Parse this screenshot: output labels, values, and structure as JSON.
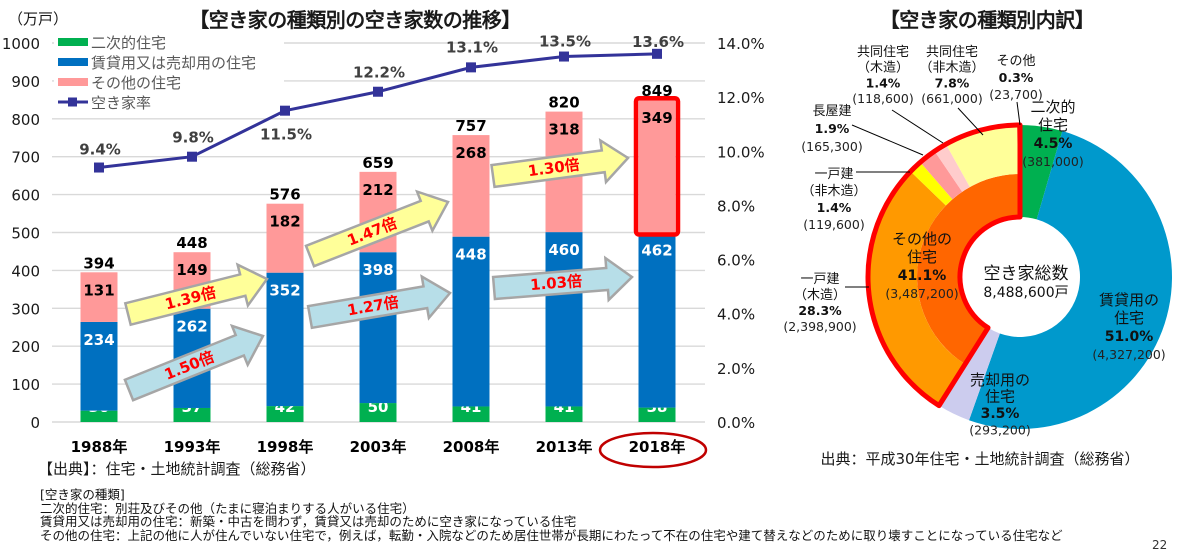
{
  "unit_label": "（万戸）",
  "source_left": "【出典】：住宅・土地統計調査（総務省）",
  "notes": {
    "heading": "[空き家の種類]",
    "lines": [
      "二次的住宅：別荘及びその他（たまに寝泊まりする人がいる住宅）",
      "賃貸用又は売却用の住宅：新築・中古を問わず，賃貸又は売却のために空き家になっている住宅",
      "その他の住宅：上記の他に人が住んでいない住宅で，例えば，転勤・入院などのため居住世帯が長期にわたって不在の住宅や建て替えなどのために取り壊すことになっている住宅など"
    ]
  },
  "pie_source": "出典：平成30年住宅・土地統計調査（総務省）",
  "page_number": "22",
  "chart_data": [
    {
      "type": "bar",
      "subtype": "stacked bar with line on secondary axis",
      "title": "【空き家の種類別の空き家数の推移】",
      "xlabel": "",
      "ylabel": "（万戸）",
      "categories": [
        "1988年",
        "1993年",
        "1998年",
        "2003年",
        "2008年",
        "2013年",
        "2018年"
      ],
      "ylim": [
        0,
        1000
      ],
      "yticks": [
        "0",
        "100",
        "200",
        "300",
        "400",
        "500",
        "600",
        "700",
        "800",
        "900",
        "1000"
      ],
      "y2lim": [
        0,
        14
      ],
      "y2ticks": [
        "0.0%",
        "2.0%",
        "4.0%",
        "6.0%",
        "8.0%",
        "10.0%",
        "12.0%",
        "14.0%"
      ],
      "grid": true,
      "legend_position": "top-left",
      "series": [
        {
          "name": "二次的住宅",
          "type": "bar",
          "color": "#00B050",
          "label_color": "#FFFFFF",
          "values": [
            30,
            37,
            42,
            50,
            41,
            41,
            38
          ]
        },
        {
          "name": "賃貸用又は売却用の住宅",
          "type": "bar",
          "color": "#0070C0",
          "label_color": "#FFFFFF",
          "values": [
            234,
            262,
            352,
            398,
            448,
            460,
            462
          ]
        },
        {
          "name": "その他の住宅",
          "type": "bar",
          "color": "#FF9999",
          "label_color": "#000000",
          "values": [
            131,
            149,
            182,
            212,
            268,
            318,
            349
          ]
        },
        {
          "name": "空き家率",
          "type": "line",
          "axis": "right",
          "color": "#333399",
          "values": [
            9.4,
            9.8,
            11.5,
            12.2,
            13.1,
            13.5,
            13.6
          ],
          "labels": [
            "9.4%",
            "9.8%",
            "11.5%",
            "12.2%",
            "13.1%",
            "13.5%",
            "13.6%"
          ]
        }
      ],
      "totals": [
        394,
        448,
        576,
        659,
        757,
        820,
        849
      ],
      "annotations": [
        {
          "label": "1.39倍",
          "series": "その他の住宅",
          "from": "1988年",
          "to": "1998年",
          "color": "#FFFF99"
        },
        {
          "label": "1.50倍",
          "series": "賃貸用又は売却用の住宅",
          "from": "1988年",
          "to": "1998年",
          "color": "#B7DEE8"
        },
        {
          "label": "1.47倍",
          "series": "その他の住宅",
          "from": "1998年",
          "to": "2008年",
          "color": "#FFFF99"
        },
        {
          "label": "1.27倍",
          "series": "賃貸用又は売却用の住宅",
          "from": "1998年",
          "to": "2008年",
          "color": "#B7DEE8"
        },
        {
          "label": "1.30倍",
          "series": "その他の住宅",
          "from": "2008年",
          "to": "2018年",
          "color": "#FFFF99"
        },
        {
          "label": "1.03倍",
          "series": "賃貸用又は売却用の住宅",
          "from": "2008年",
          "to": "2018年",
          "color": "#B7DEE8"
        }
      ],
      "highlight": {
        "category": "2018年",
        "series": "その他の住宅",
        "color": "#FF0000",
        "label_ring_color": "#C00000"
      }
    },
    {
      "type": "pie",
      "subtype": "donut",
      "title": "【空き家の種類別内訳】",
      "order": "clockwise from top",
      "center_label": "空き家総数",
      "center_value": "8,488,600戸",
      "slices": [
        {
          "name": "二次的住宅",
          "label_lines": [
            "二次的",
            "住宅"
          ],
          "percent": 4.5,
          "percent_label": "4.5%",
          "count_label": "(381,000)",
          "color": "#00B050"
        },
        {
          "name": "賃貸用の住宅",
          "label_lines": [
            "賃貸用の",
            "住宅"
          ],
          "percent": 51.0,
          "percent_label": "51.0%",
          "count_label": "(4,327,200)",
          "color": "#0099CC"
        },
        {
          "name": "売却用の住宅",
          "label_lines": [
            "売却用の",
            "住宅"
          ],
          "percent": 3.5,
          "percent_label": "3.5%",
          "count_label": "(293,200)",
          "color": "#CCCCEE"
        },
        {
          "name": "その他の住宅",
          "label_lines": [
            "その他の",
            "住宅"
          ],
          "percent": 41.1,
          "percent_label": "41.1%",
          "count_label": "(3,487,200)",
          "color": "#FF6600",
          "highlighted": true,
          "highlight_color": "#FF0000",
          "breakdown": [
            {
              "name": "一戸建（木造）",
              "label_lines": [
                "一戸建",
                "（木造）"
              ],
              "percent": 28.3,
              "percent_label": "28.3%",
              "count_label": "(2,398,900)",
              "color": "#FF9900"
            },
            {
              "name": "一戸建（非木造）",
              "label_lines": [
                "一戸建",
                "（非木造）"
              ],
              "percent": 1.4,
              "percent_label": "1.4%",
              "count_label": "(119,600)",
              "color": "#FFFF00"
            },
            {
              "name": "長屋建",
              "label_lines": [
                "長屋建"
              ],
              "percent": 1.9,
              "percent_label": "1.9%",
              "count_label": "(165,300)",
              "color": "#FF9999"
            },
            {
              "name": "共同住宅（木造）",
              "label_lines": [
                "共同住宅",
                "（木造）"
              ],
              "percent": 1.4,
              "percent_label": "1.4%",
              "count_label": "(118,600)",
              "color": "#FFCCCC"
            },
            {
              "name": "共同住宅（非木造）",
              "label_lines": [
                "共同住宅",
                "（非木造）"
              ],
              "percent": 7.8,
              "percent_label": "7.8%",
              "count_label": "(661,000)",
              "color": "#FFFF99"
            },
            {
              "name": "その他",
              "label_lines": [
                "その他"
              ],
              "percent": 0.3,
              "percent_label": "0.3%",
              "count_label": "(23,700)",
              "color": "#FF3300"
            }
          ]
        }
      ]
    }
  ]
}
